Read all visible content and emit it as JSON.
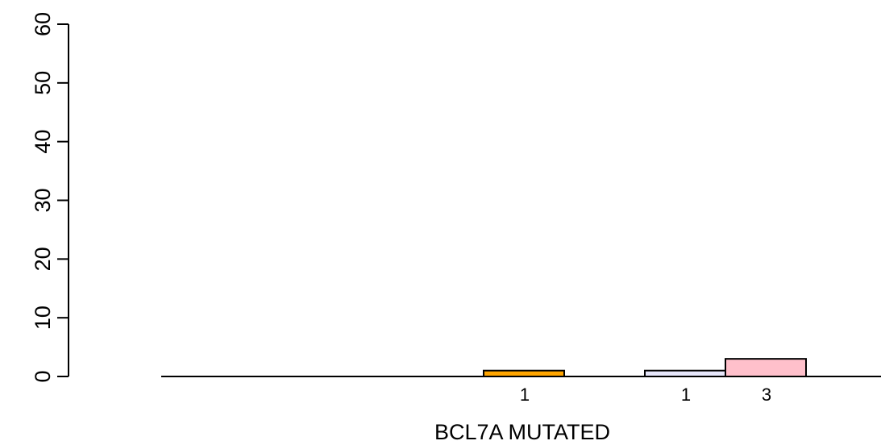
{
  "chart_data": {
    "type": "bar",
    "xlabel": "BCL7A MUTATED",
    "ylabel": "",
    "ylim": [
      0,
      60
    ],
    "yticks": [
      0,
      10,
      20,
      30,
      40,
      50,
      60
    ],
    "grid": false,
    "bars": [
      {
        "slot": 0,
        "value": 0,
        "label": "",
        "color": "#FFA500"
      },
      {
        "slot": 1,
        "value": 0,
        "label": "",
        "color": "#E6E6FA"
      },
      {
        "slot": 2,
        "value": 0,
        "label": "",
        "color": "#FFC0CB"
      },
      {
        "slot": 3,
        "value": 0,
        "label": "",
        "color": "#FFC0CB"
      },
      {
        "slot": 4,
        "value": 1,
        "label": "1",
        "color": "#FFA500"
      },
      {
        "slot": 6,
        "value": 1,
        "label": "1",
        "color": "#E6E6FA"
      },
      {
        "slot": 7,
        "value": 3,
        "label": "3",
        "color": "#FFC0CB"
      }
    ]
  }
}
